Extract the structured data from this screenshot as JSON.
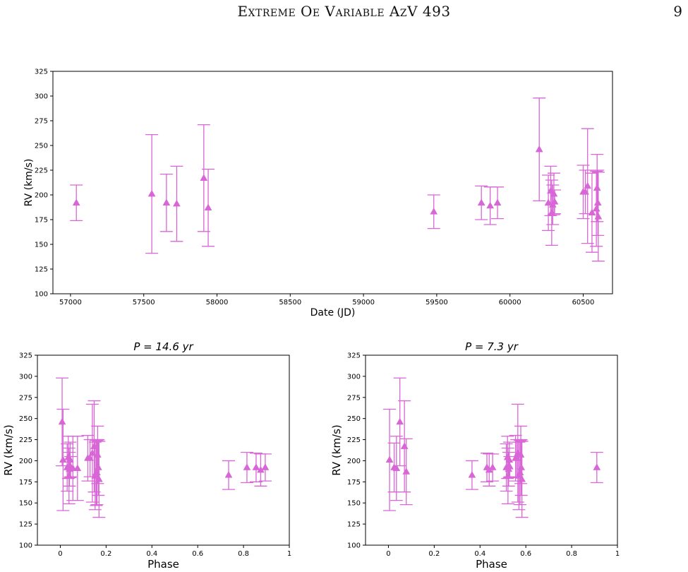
{
  "header": {
    "title": "Extreme Oe Variable AzV 493",
    "page_number": "9"
  },
  "colors": {
    "marker": "#d966d6",
    "axis": "#000000"
  },
  "chart_data": [
    {
      "type": "scatter",
      "title": "",
      "xlabel": "Date (JD)",
      "ylabel": "RV (km/s)",
      "xlim": [
        56880,
        60700
      ],
      "ylim": [
        100,
        325
      ],
      "xticks": [
        57000,
        57500,
        58000,
        58500,
        59000,
        59500,
        60000,
        60500
      ],
      "yticks": [
        100,
        125,
        150,
        175,
        200,
        225,
        250,
        275,
        300,
        325
      ],
      "marker": "triangle-up",
      "points": [
        {
          "x": 57040,
          "y": 192,
          "err": 18
        },
        {
          "x": 57555,
          "y": 201,
          "err": 60
        },
        {
          "x": 57655,
          "y": 192,
          "err": 29
        },
        {
          "x": 57725,
          "y": 191,
          "err": 38
        },
        {
          "x": 57910,
          "y": 217,
          "err": 54
        },
        {
          "x": 57940,
          "y": 187,
          "err": 39
        },
        {
          "x": 59480,
          "y": 183,
          "err": 17
        },
        {
          "x": 59805,
          "y": 192,
          "err": 17
        },
        {
          "x": 59865,
          "y": 189,
          "err": 19
        },
        {
          "x": 59915,
          "y": 192,
          "err": 16
        },
        {
          "x": 60200,
          "y": 246,
          "err": 52
        },
        {
          "x": 60262,
          "y": 192,
          "err": 28
        },
        {
          "x": 60278,
          "y": 204,
          "err": 25
        },
        {
          "x": 60285,
          "y": 182,
          "err": 33
        },
        {
          "x": 60292,
          "y": 190,
          "err": 20
        },
        {
          "x": 60300,
          "y": 201,
          "err": 21
        },
        {
          "x": 60305,
          "y": 193,
          "err": 12
        },
        {
          "x": 60500,
          "y": 203,
          "err": 27
        },
        {
          "x": 60515,
          "y": 203,
          "err": 22
        },
        {
          "x": 60530,
          "y": 209,
          "err": 58
        },
        {
          "x": 60560,
          "y": 182,
          "err": 40
        },
        {
          "x": 60590,
          "y": 186,
          "err": 38
        },
        {
          "x": 60595,
          "y": 207,
          "err": 34
        },
        {
          "x": 60600,
          "y": 192,
          "err": 33
        },
        {
          "x": 60603,
          "y": 178,
          "err": 45
        }
      ]
    },
    {
      "type": "scatter",
      "title": "P = 14.6 yr",
      "xlabel": "Phase",
      "ylabel": "RV (km/s)",
      "xlim": [
        -0.1,
        1.0
      ],
      "ylim": [
        100,
        325
      ],
      "xticks": [
        0.0,
        0.2,
        0.4,
        0.6,
        0.8,
        1.0
      ],
      "yticks": [
        100,
        125,
        150,
        175,
        200,
        225,
        250,
        275,
        300,
        325
      ],
      "marker": "triangle-up",
      "points": [
        {
          "x": 0.008,
          "y": 246,
          "err": 52
        },
        {
          "x": 0.012,
          "y": 201,
          "err": 60
        },
        {
          "x": 0.03,
          "y": 192,
          "err": 28
        },
        {
          "x": 0.035,
          "y": 204,
          "err": 25
        },
        {
          "x": 0.038,
          "y": 182,
          "err": 33
        },
        {
          "x": 0.04,
          "y": 190,
          "err": 20
        },
        {
          "x": 0.043,
          "y": 201,
          "err": 21
        },
        {
          "x": 0.045,
          "y": 193,
          "err": 12
        },
        {
          "x": 0.055,
          "y": 191,
          "err": 38
        },
        {
          "x": 0.075,
          "y": 191,
          "err": 38
        },
        {
          "x": 0.12,
          "y": 203,
          "err": 27
        },
        {
          "x": 0.13,
          "y": 203,
          "err": 22
        },
        {
          "x": 0.14,
          "y": 209,
          "err": 58
        },
        {
          "x": 0.148,
          "y": 217,
          "err": 54
        },
        {
          "x": 0.152,
          "y": 182,
          "err": 40
        },
        {
          "x": 0.157,
          "y": 186,
          "err": 39
        },
        {
          "x": 0.16,
          "y": 186,
          "err": 38
        },
        {
          "x": 0.163,
          "y": 207,
          "err": 34
        },
        {
          "x": 0.166,
          "y": 192,
          "err": 33
        },
        {
          "x": 0.169,
          "y": 178,
          "err": 45
        },
        {
          "x": 0.735,
          "y": 183,
          "err": 17
        },
        {
          "x": 0.815,
          "y": 192,
          "err": 18
        },
        {
          "x": 0.855,
          "y": 192,
          "err": 17
        },
        {
          "x": 0.875,
          "y": 189,
          "err": 19
        },
        {
          "x": 0.895,
          "y": 192,
          "err": 16
        }
      ]
    },
    {
      "type": "scatter",
      "title": "P = 7.3 yr",
      "xlabel": "Phase",
      "ylabel": "RV (km/s)",
      "xlim": [
        -0.1,
        1.0
      ],
      "ylim": [
        100,
        325
      ],
      "xticks": [
        0.0,
        0.2,
        0.4,
        0.6,
        0.8,
        1.0
      ],
      "yticks": [
        100,
        125,
        150,
        175,
        200,
        225,
        250,
        275,
        300,
        325
      ],
      "marker": "triangle-up",
      "points": [
        {
          "x": 0.005,
          "y": 201,
          "err": 60
        },
        {
          "x": 0.025,
          "y": 192,
          "err": 29
        },
        {
          "x": 0.035,
          "y": 191,
          "err": 38
        },
        {
          "x": 0.05,
          "y": 246,
          "err": 52
        },
        {
          "x": 0.07,
          "y": 217,
          "err": 54
        },
        {
          "x": 0.078,
          "y": 187,
          "err": 39
        },
        {
          "x": 0.365,
          "y": 183,
          "err": 17
        },
        {
          "x": 0.43,
          "y": 192,
          "err": 17
        },
        {
          "x": 0.44,
          "y": 189,
          "err": 19
        },
        {
          "x": 0.455,
          "y": 192,
          "err": 16
        },
        {
          "x": 0.515,
          "y": 192,
          "err": 28
        },
        {
          "x": 0.52,
          "y": 204,
          "err": 25
        },
        {
          "x": 0.522,
          "y": 182,
          "err": 33
        },
        {
          "x": 0.525,
          "y": 190,
          "err": 20
        },
        {
          "x": 0.528,
          "y": 201,
          "err": 21
        },
        {
          "x": 0.53,
          "y": 193,
          "err": 12
        },
        {
          "x": 0.555,
          "y": 203,
          "err": 27
        },
        {
          "x": 0.56,
          "y": 203,
          "err": 22
        },
        {
          "x": 0.565,
          "y": 209,
          "err": 58
        },
        {
          "x": 0.57,
          "y": 182,
          "err": 40
        },
        {
          "x": 0.575,
          "y": 186,
          "err": 38
        },
        {
          "x": 0.578,
          "y": 207,
          "err": 34
        },
        {
          "x": 0.58,
          "y": 192,
          "err": 33
        },
        {
          "x": 0.583,
          "y": 178,
          "err": 45
        },
        {
          "x": 0.91,
          "y": 192,
          "err": 18
        }
      ]
    }
  ]
}
